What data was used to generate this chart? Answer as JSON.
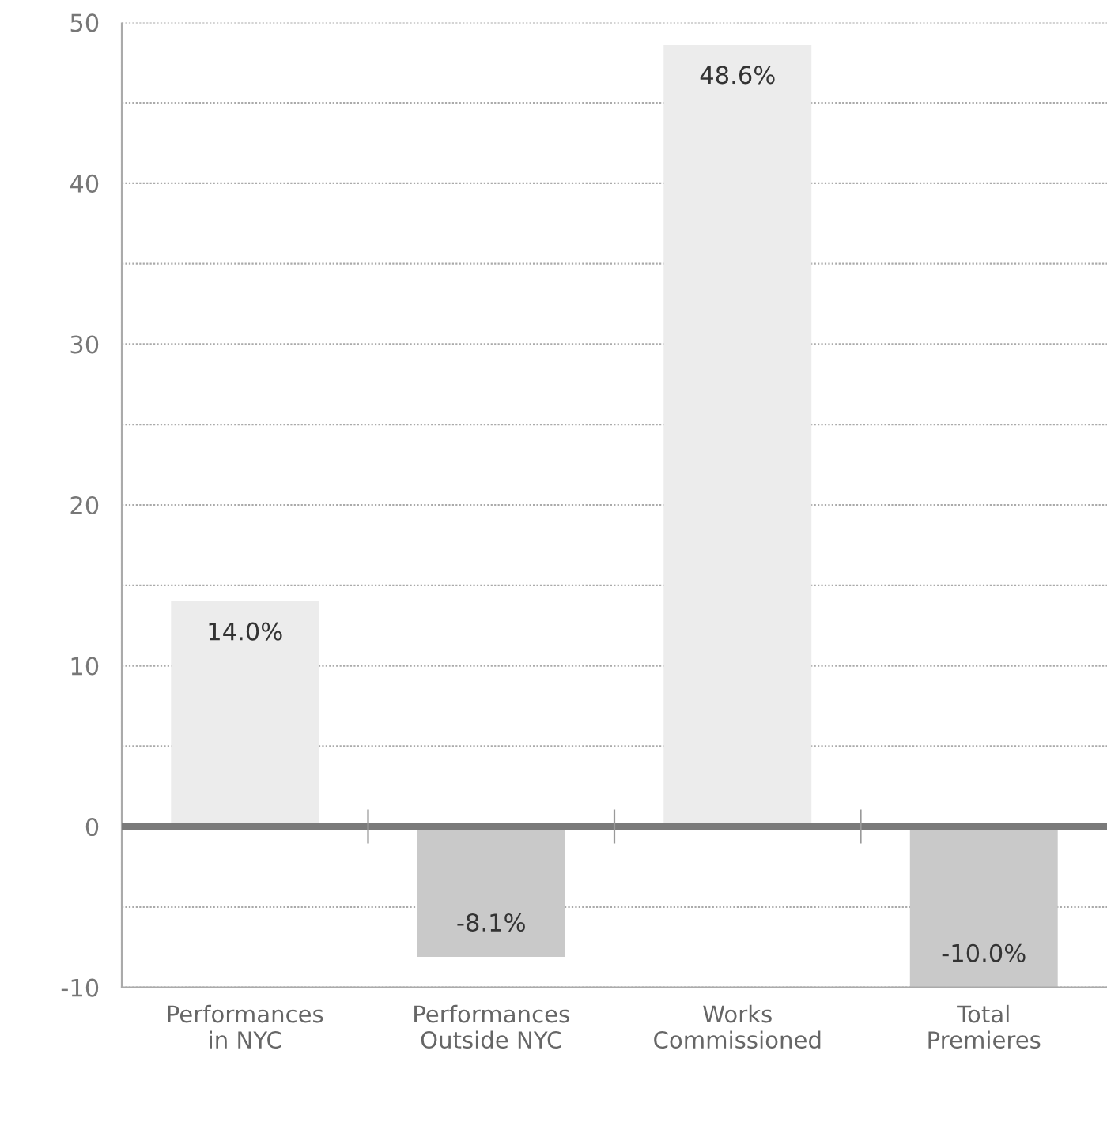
{
  "chart_data": {
    "type": "bar",
    "categories": [
      "Performances\nin NYC",
      "Performances\nOutside NYC",
      "Works\nCommissioned",
      "Total\nPremieres"
    ],
    "values": [
      14.0,
      -8.1,
      48.6,
      -10.0
    ],
    "colors": [
      "#ececec",
      "#c9c9c9",
      "#ececec",
      "#c9c9c9"
    ],
    "value_labels": [
      "14.0%",
      "-8.1%",
      "48.6%",
      "-10.0%"
    ],
    "ylim": [
      -10,
      50
    ],
    "yticks": [
      -10,
      {
        "value": -5,
        "label": null
      },
      0,
      {
        "value": 5,
        "label": null
      },
      10,
      {
        "value": 15,
        "label": null
      },
      20,
      {
        "value": 25,
        "label": null
      },
      30,
      {
        "value": 35,
        "label": null
      },
      40,
      {
        "value": 45,
        "label": null
      },
      50
    ],
    "ref_lines": [
      {
        "axis": "y",
        "value": 0,
        "color": "#7a7a7a"
      }
    ],
    "grid": "y"
  }
}
